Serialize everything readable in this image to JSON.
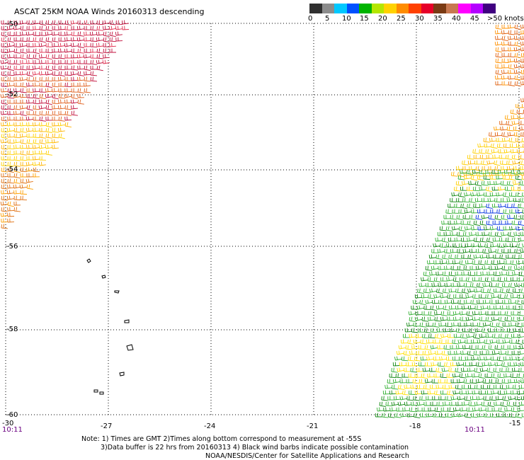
{
  "title": "ASCAT 25KM NOAA Winds 20160313 descending",
  "legend": {
    "colors": [
      "#303030",
      "#8c8c8c",
      "#00c8ff",
      "#0050ff",
      "#00b400",
      "#b4e600",
      "#ffd200",
      "#ff8c00",
      "#ff4000",
      "#e60028",
      "#7a3a14",
      "#c87850",
      "#ff00ff",
      "#b400ff",
      "#400080"
    ],
    "labels": [
      "0",
      "5",
      "10",
      "15",
      "20",
      "25",
      "30",
      "35",
      "40",
      "45",
      ">50 knots"
    ]
  },
  "map": {
    "lat_labels": [
      "-50",
      "-52",
      "-54",
      "-56",
      "-58",
      "-60"
    ],
    "lon_labels": [
      "-30",
      "-27",
      "-24",
      "-21",
      "-18",
      "-15"
    ],
    "time_left": "10:11",
    "time_right": "10:11"
  },
  "notes": {
    "line1": "Note: 1) Times are GMT 2)Times along bottom correspond to measurement at -55S",
    "line2": "3)Data buffer is 22 hrs from 20160313 4) Black wind barbs indicate possible contamination",
    "line3": "NOAA/NESDIS/Center for Satellite Applications and Research"
  }
}
